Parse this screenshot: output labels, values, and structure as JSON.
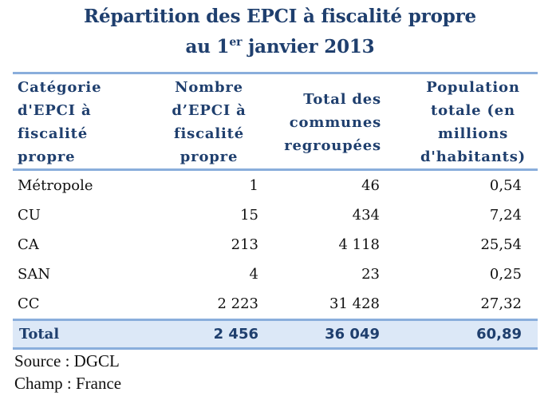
{
  "title": {
    "line1": "Répartition des EPCI à fiscalité propre",
    "line2_prefix": "au 1",
    "line2_sup": "er",
    "line2_suffix": " janvier 2013"
  },
  "table": {
    "headers": [
      {
        "lines": [
          "Catégorie",
          "d'EPCI à",
          "fiscalité",
          "propre"
        ]
      },
      {
        "lines": [
          "Nombre",
          "d’EPCI à",
          "fiscalité",
          "propre"
        ]
      },
      {
        "lines": [
          "Total des",
          "communes",
          "regroupées"
        ]
      },
      {
        "lines": [
          "Population",
          "totale (en",
          "millions",
          "d'habitants)"
        ]
      }
    ],
    "rows": [
      {
        "category": "Métropole",
        "nombre": "1",
        "communes": "46",
        "population": "0,54"
      },
      {
        "category": "CU",
        "nombre": "15",
        "communes": "434",
        "population": "7,24"
      },
      {
        "category": "CA",
        "nombre": "213",
        "communes": "4 118",
        "population": "25,54"
      },
      {
        "category": "SAN",
        "nombre": "4",
        "communes": "23",
        "population": "0,25"
      },
      {
        "category": "CC",
        "nombre": "2 223",
        "communes": "31 428",
        "population": "27,32"
      }
    ],
    "total": {
      "category": "Total",
      "nombre": "2 456",
      "communes": "36 049",
      "population": "60,89"
    }
  },
  "notes": {
    "source": "Source : DGCL",
    "champ": "Champ : France"
  },
  "colors": {
    "heading": "#1f3f6e",
    "rule": "#8aaedc",
    "total_background": "#dce8f7"
  }
}
